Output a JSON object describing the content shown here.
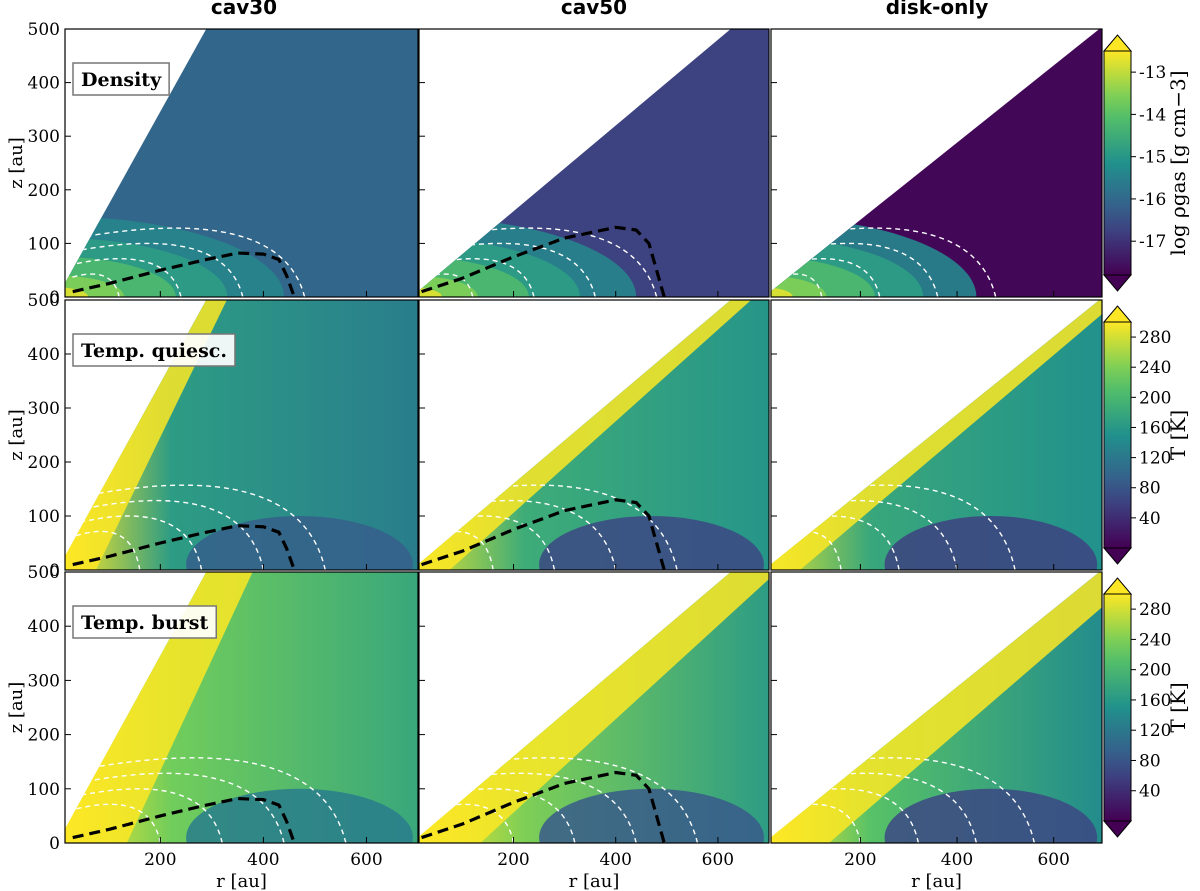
{
  "column_titles": [
    "cav30",
    "cav50",
    "disk-only"
  ],
  "row_labels": [
    "Density",
    "Temp. quiesc.",
    "Temp. burst"
  ],
  "colorbars": [
    {
      "label": "log ρgas [g cm−3]",
      "ticks": [
        "-13",
        "-14",
        "-15",
        "-16",
        "-17"
      ]
    },
    {
      "label": "T [K]",
      "ticks": [
        "280",
        "240",
        "200",
        "160",
        "120",
        "80",
        "40"
      ]
    },
    {
      "label": "T [K]",
      "ticks": [
        "280",
        "240",
        "200",
        "160",
        "120",
        "80",
        "40"
      ]
    }
  ],
  "chart_data": {
    "type": "heatmap",
    "layout": "3x3 grid of panels",
    "xlabel": "r [au]",
    "ylabel": "z [au]",
    "xlim": [
      15,
      700
    ],
    "ylim": [
      0,
      500
    ],
    "xticks": [
      "200",
      "400",
      "600"
    ],
    "yticks": [
      "0",
      "100",
      "200",
      "300",
      "400",
      "500"
    ],
    "colormap": "viridis",
    "colorbar_extend": "both",
    "rows": [
      {
        "quantity": "Density",
        "clim": [
          -17.8,
          -12.5
        ],
        "colorbar_ticks": [
          -13,
          -14,
          -15,
          -16,
          -17
        ]
      },
      {
        "quantity": "Temp. quiesc.",
        "clim": [
          0,
          300
        ],
        "colorbar_ticks": [
          280,
          240,
          200,
          160,
          120,
          80,
          40
        ]
      },
      {
        "quantity": "Temp. burst",
        "clim": [
          0,
          300
        ],
        "colorbar_ticks": [
          280,
          240,
          200,
          160,
          120,
          80,
          40
        ]
      }
    ],
    "columns": [
      {
        "model": "cav30",
        "cavity_boundary_slope": 1.73,
        "disk_boundary_au": [
          [
            30,
            10
          ],
          [
            100,
            25
          ],
          [
            200,
            50
          ],
          [
            280,
            68
          ],
          [
            350,
            82
          ],
          [
            400,
            80
          ],
          [
            430,
            70
          ],
          [
            445,
            40
          ],
          [
            460,
            0
          ]
        ]
      },
      {
        "model": "cav50",
        "cavity_boundary_slope": 0.8,
        "disk_boundary_au": [
          [
            20,
            10
          ],
          [
            100,
            35
          ],
          [
            200,
            75
          ],
          [
            300,
            110
          ],
          [
            400,
            130
          ],
          [
            440,
            125
          ],
          [
            465,
            100
          ],
          [
            480,
            50
          ],
          [
            495,
            0
          ]
        ]
      },
      {
        "model": "disk-only",
        "cavity_boundary_slope": 0.72,
        "disk_boundary_au": []
      }
    ]
  }
}
